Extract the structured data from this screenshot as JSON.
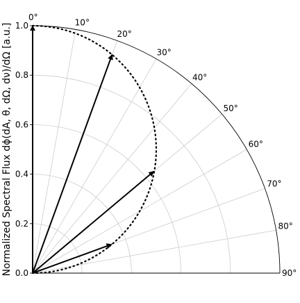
{
  "chart_data": {
    "type": "polar-quadrant",
    "title": "",
    "ylabel": "Normalized Spectral Flux dϕ(dA, θ, dΩ, dν)/dΩ [a.u.]",
    "ylim": [
      0,
      1
    ],
    "theta_range_deg": [
      0,
      90
    ],
    "theta_zero": "top",
    "theta_direction": "clockwise",
    "radial_ticks": [
      0.0,
      0.2,
      0.4,
      0.6,
      0.8,
      1.0
    ],
    "radial_tick_labels": [
      "0.0",
      "0.2",
      "0.4",
      "0.6",
      "0.8",
      "1.0"
    ],
    "angle_ticks_deg": [
      0,
      10,
      20,
      30,
      40,
      50,
      60,
      70,
      80,
      90
    ],
    "angle_tick_labels": [
      "0°",
      "10°",
      "20°",
      "30°",
      "40°",
      "50°",
      "60°",
      "70°",
      "80°",
      "90°"
    ],
    "grid": true,
    "series": [
      {
        "style": "dotted",
        "kind": "curve",
        "function": "cos(theta)",
        "theta_deg_range": [
          0,
          90
        ],
        "color": "#000000"
      },
      {
        "style": "solid-arrows",
        "kind": "arrows",
        "color": "#000000",
        "arrows": [
          {
            "theta_deg": 0,
            "r": 1.0
          },
          {
            "theta_deg": 20,
            "r": 0.94
          },
          {
            "theta_deg": 50,
            "r": 0.64
          },
          {
            "theta_deg": 70,
            "r": 0.34
          }
        ]
      }
    ]
  },
  "colors": {
    "grid": "#cccccc",
    "axis": "#000000",
    "data": "#000000"
  }
}
